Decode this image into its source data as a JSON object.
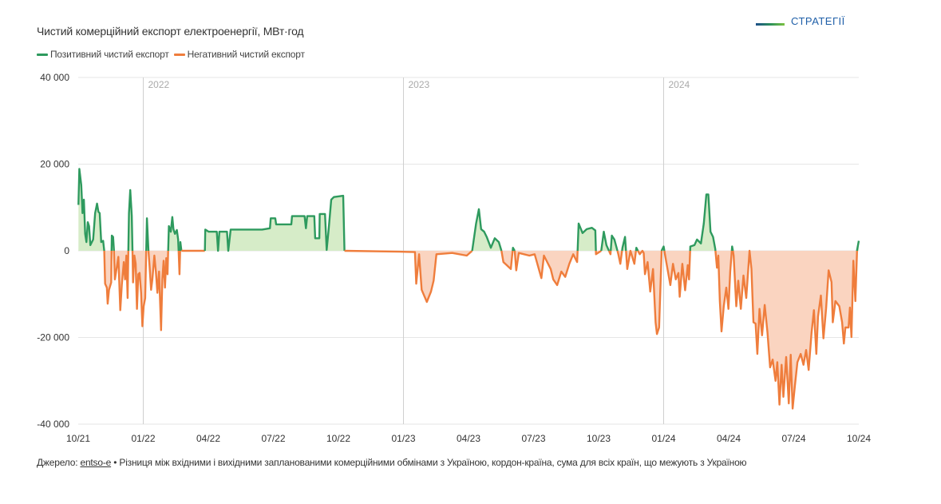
{
  "logo": {
    "text": "СТРАТЕГІЇ"
  },
  "chart_data": {
    "type": "area",
    "title": "Чистий комерційний експорт електроенергії, МВт·год",
    "xlabel": "",
    "ylabel": "",
    "x_unit": "months since 10/2021",
    "xlim": [
      0,
      36
    ],
    "ylim": [
      -40000,
      40000
    ],
    "grid": true,
    "legend_position": "top-left",
    "legend": [
      {
        "name": "Позитивний чистий експорт",
        "color": "#2e9a5e"
      },
      {
        "name": "Негативний чистий експорт",
        "color": "#ef7d3c"
      }
    ],
    "fill_colors": {
      "positive": "#d6ecc8",
      "negative": "#fad4c0"
    },
    "y_ticks": [
      {
        "value": 40000,
        "label": "40 000"
      },
      {
        "value": 20000,
        "label": "20 000"
      },
      {
        "value": 0,
        "label": "0"
      },
      {
        "value": -20000,
        "label": "-20 000"
      },
      {
        "value": -40000,
        "label": "-40 000"
      }
    ],
    "x_ticks": [
      {
        "value": 0,
        "label": "10/21"
      },
      {
        "value": 3,
        "label": "01/22"
      },
      {
        "value": 6,
        "label": "04/22"
      },
      {
        "value": 9,
        "label": "07/22"
      },
      {
        "value": 12,
        "label": "10/22"
      },
      {
        "value": 15,
        "label": "01/23"
      },
      {
        "value": 18,
        "label": "04/23"
      },
      {
        "value": 21,
        "label": "07/23"
      },
      {
        "value": 24,
        "label": "10/23"
      },
      {
        "value": 27,
        "label": "01/24"
      },
      {
        "value": 30,
        "label": "04/24"
      },
      {
        "value": 33,
        "label": "07/24"
      },
      {
        "value": 36,
        "label": "10/24"
      }
    ],
    "year_markers": [
      {
        "value": 3,
        "label": "2022"
      },
      {
        "value": 15,
        "label": "2023"
      },
      {
        "value": 27,
        "label": "2024"
      }
    ],
    "points": [
      [
        0.01,
        10600
      ],
      [
        0.05,
        18900
      ],
      [
        0.14,
        15200
      ],
      [
        0.2,
        8700
      ],
      [
        0.26,
        11800
      ],
      [
        0.32,
        3900
      ],
      [
        0.38,
        2000
      ],
      [
        0.44,
        6600
      ],
      [
        0.5,
        5700
      ],
      [
        0.56,
        1300
      ],
      [
        0.69,
        2600
      ],
      [
        0.78,
        8700
      ],
      [
        0.87,
        10900
      ],
      [
        0.93,
        9000
      ],
      [
        0.99,
        8700
      ],
      [
        1.06,
        2000
      ],
      [
        1.15,
        2300
      ],
      [
        1.2,
        0
      ],
      [
        1.24,
        -7600
      ],
      [
        1.32,
        -8500
      ],
      [
        1.36,
        -12200
      ],
      [
        1.42,
        -9000
      ],
      [
        1.52,
        -7300
      ],
      [
        1.55,
        3500
      ],
      [
        1.61,
        3200
      ],
      [
        1.65,
        -200
      ],
      [
        1.69,
        -6600
      ],
      [
        1.79,
        -3500
      ],
      [
        1.85,
        -1400
      ],
      [
        1.94,
        -13700
      ],
      [
        2.01,
        -7900
      ],
      [
        2.1,
        -2600
      ],
      [
        2.16,
        -6600
      ],
      [
        2.22,
        -1100
      ],
      [
        2.28,
        -10900
      ],
      [
        2.34,
        8700
      ],
      [
        2.4,
        14000
      ],
      [
        2.47,
        8100
      ],
      [
        2.53,
        -7300
      ],
      [
        2.59,
        -1100
      ],
      [
        2.65,
        -3000
      ],
      [
        2.71,
        -13400
      ],
      [
        2.77,
        -5400
      ],
      [
        2.83,
        -5100
      ],
      [
        2.9,
        -9700
      ],
      [
        2.96,
        -17400
      ],
      [
        3.02,
        -12800
      ],
      [
        3.09,
        -10900
      ],
      [
        3.17,
        7500
      ],
      [
        3.24,
        0
      ],
      [
        3.29,
        -3500
      ],
      [
        3.36,
        -9000
      ],
      [
        3.42,
        -6600
      ],
      [
        3.51,
        -1100
      ],
      [
        3.58,
        -4800
      ],
      [
        3.65,
        -9700
      ],
      [
        3.73,
        -4800
      ],
      [
        3.82,
        -18300
      ],
      [
        3.88,
        -6600
      ],
      [
        3.94,
        -2300
      ],
      [
        4.0,
        -8500
      ],
      [
        4.06,
        -1700
      ],
      [
        4.12,
        -5400
      ],
      [
        4.18,
        5700
      ],
      [
        4.27,
        4400
      ],
      [
        4.34,
        7800
      ],
      [
        4.39,
        5000
      ],
      [
        4.46,
        3900
      ],
      [
        4.55,
        4800
      ],
      [
        4.61,
        2600
      ],
      [
        4.67,
        -5400
      ],
      [
        4.71,
        2000
      ],
      [
        4.76,
        0
      ],
      [
        5.84,
        0
      ],
      [
        5.86,
        4900
      ],
      [
        6.02,
        4400
      ],
      [
        6.39,
        4400
      ],
      [
        6.45,
        0
      ],
      [
        6.51,
        4400
      ],
      [
        6.86,
        4400
      ],
      [
        6.92,
        0
      ],
      [
        7.03,
        4900
      ],
      [
        8.48,
        4900
      ],
      [
        8.84,
        5200
      ],
      [
        8.88,
        7500
      ],
      [
        9.09,
        7500
      ],
      [
        9.13,
        6100
      ],
      [
        9.83,
        6100
      ],
      [
        9.86,
        8000
      ],
      [
        10.44,
        8000
      ],
      [
        10.5,
        5200
      ],
      [
        10.56,
        8000
      ],
      [
        10.89,
        8000
      ],
      [
        10.93,
        2900
      ],
      [
        11.12,
        2900
      ],
      [
        11.14,
        8500
      ],
      [
        11.38,
        8500
      ],
      [
        11.46,
        200
      ],
      [
        11.55,
        5000
      ],
      [
        11.67,
        11800
      ],
      [
        11.79,
        12400
      ],
      [
        12.22,
        12700
      ],
      [
        12.28,
        0
      ],
      [
        14.8,
        -200
      ],
      [
        15.53,
        -300
      ],
      [
        15.59,
        -7600
      ],
      [
        15.72,
        -800
      ],
      [
        15.84,
        -9000
      ],
      [
        16.08,
        -11800
      ],
      [
        16.27,
        -9400
      ],
      [
        16.39,
        -6900
      ],
      [
        16.52,
        -800
      ],
      [
        17.25,
        -500
      ],
      [
        17.92,
        -1100
      ],
      [
        18.17,
        0
      ],
      [
        18.35,
        6300
      ],
      [
        18.48,
        9600
      ],
      [
        18.58,
        5000
      ],
      [
        18.72,
        4400
      ],
      [
        18.84,
        3200
      ],
      [
        19.03,
        700
      ],
      [
        19.21,
        2900
      ],
      [
        19.4,
        2000
      ],
      [
        19.52,
        0
      ],
      [
        19.61,
        -2600
      ],
      [
        19.76,
        -3300
      ],
      [
        19.95,
        -4200
      ],
      [
        20.05,
        700
      ],
      [
        20.13,
        0
      ],
      [
        20.2,
        -4500
      ],
      [
        20.32,
        -500
      ],
      [
        20.81,
        -1100
      ],
      [
        21.05,
        -800
      ],
      [
        21.36,
        -6300
      ],
      [
        21.48,
        -1100
      ],
      [
        21.79,
        -4200
      ],
      [
        21.91,
        -6600
      ],
      [
        22.09,
        -7900
      ],
      [
        22.28,
        -4800
      ],
      [
        22.46,
        -6000
      ],
      [
        22.65,
        -3000
      ],
      [
        22.83,
        -800
      ],
      [
        23.01,
        -2600
      ],
      [
        23.08,
        6300
      ],
      [
        23.26,
        4100
      ],
      [
        23.45,
        5000
      ],
      [
        23.69,
        5300
      ],
      [
        23.85,
        4700
      ],
      [
        23.88,
        -800
      ],
      [
        24.12,
        0
      ],
      [
        24.24,
        4400
      ],
      [
        24.36,
        1300
      ],
      [
        24.55,
        -800
      ],
      [
        24.61,
        3500
      ],
      [
        24.73,
        2600
      ],
      [
        24.91,
        -800
      ],
      [
        25.0,
        -3000
      ],
      [
        25.1,
        700
      ],
      [
        25.22,
        3200
      ],
      [
        25.32,
        -4200
      ],
      [
        25.47,
        0
      ],
      [
        25.65,
        -3000
      ],
      [
        25.74,
        700
      ],
      [
        25.9,
        -800
      ],
      [
        26.02,
        0
      ],
      [
        26.08,
        -500
      ],
      [
        26.14,
        -5400
      ],
      [
        26.26,
        -2600
      ],
      [
        26.38,
        -9400
      ],
      [
        26.51,
        -4200
      ],
      [
        26.63,
        -16500
      ],
      [
        26.69,
        -19200
      ],
      [
        26.79,
        -17700
      ],
      [
        26.91,
        100
      ],
      [
        27.0,
        1000
      ],
      [
        27.12,
        -2600
      ],
      [
        27.31,
        -7900
      ],
      [
        27.43,
        -3000
      ],
      [
        27.56,
        -6600
      ],
      [
        27.68,
        -5100
      ],
      [
        27.74,
        -10600
      ],
      [
        27.86,
        -3000
      ],
      [
        27.99,
        -9100
      ],
      [
        28.11,
        -3300
      ],
      [
        28.17,
        -6600
      ],
      [
        28.23,
        1000
      ],
      [
        28.42,
        1300
      ],
      [
        28.54,
        2600
      ],
      [
        28.72,
        1700
      ],
      [
        28.85,
        6300
      ],
      [
        28.97,
        13000
      ],
      [
        29.06,
        13000
      ],
      [
        29.16,
        4400
      ],
      [
        29.28,
        3200
      ],
      [
        29.38,
        400
      ],
      [
        29.46,
        -3900
      ],
      [
        29.52,
        -1100
      ],
      [
        29.59,
        -11600
      ],
      [
        29.67,
        -18600
      ],
      [
        29.77,
        -12800
      ],
      [
        29.89,
        -8500
      ],
      [
        29.99,
        -13400
      ],
      [
        30.07,
        -4800
      ],
      [
        30.16,
        1000
      ],
      [
        30.23,
        -1100
      ],
      [
        30.35,
        -12800
      ],
      [
        30.44,
        -6900
      ],
      [
        30.56,
        -13400
      ],
      [
        30.68,
        -5700
      ],
      [
        30.81,
        -10900
      ],
      [
        30.96,
        0
      ],
      [
        31.05,
        -4200
      ],
      [
        31.14,
        -16500
      ],
      [
        31.24,
        -16800
      ],
      [
        31.32,
        -23800
      ],
      [
        31.42,
        -13400
      ],
      [
        31.54,
        -19500
      ],
      [
        31.66,
        -12500
      ],
      [
        31.79,
        -18900
      ],
      [
        31.91,
        -26900
      ],
      [
        32.03,
        -25100
      ],
      [
        32.16,
        -30000
      ],
      [
        32.24,
        -25700
      ],
      [
        32.34,
        -35500
      ],
      [
        32.44,
        -26300
      ],
      [
        32.52,
        -33700
      ],
      [
        32.65,
        -24500
      ],
      [
        32.77,
        -35200
      ],
      [
        32.86,
        -24000
      ],
      [
        32.95,
        -36400
      ],
      [
        33.05,
        -31200
      ],
      [
        33.17,
        -25700
      ],
      [
        33.32,
        -23800
      ],
      [
        33.45,
        -26300
      ],
      [
        33.57,
        -22900
      ],
      [
        33.69,
        -27500
      ],
      [
        33.82,
        -18900
      ],
      [
        33.93,
        -13700
      ],
      [
        34.04,
        -23800
      ],
      [
        34.12,
        -15200
      ],
      [
        34.25,
        -10300
      ],
      [
        34.37,
        -20200
      ],
      [
        34.49,
        -13400
      ],
      [
        34.61,
        -4500
      ],
      [
        34.74,
        -7200
      ],
      [
        34.8,
        -16500
      ],
      [
        34.92,
        -11600
      ],
      [
        35.1,
        -12800
      ],
      [
        35.23,
        -16500
      ],
      [
        35.31,
        -21400
      ],
      [
        35.38,
        -17700
      ],
      [
        35.53,
        -17700
      ],
      [
        35.59,
        -13100
      ],
      [
        35.66,
        -19900
      ],
      [
        35.75,
        -2300
      ],
      [
        35.84,
        -11600
      ],
      [
        35.92,
        100
      ],
      [
        36.0,
        2300
      ]
    ]
  },
  "footer": {
    "source_label": "Джерело:",
    "source_link": "entso-e",
    "note": "• Різниця між вхідними і вихідними запланованими комерційними обмінами з Україною, кордон-країна, сума для всіх країн, що межують з Україною"
  }
}
